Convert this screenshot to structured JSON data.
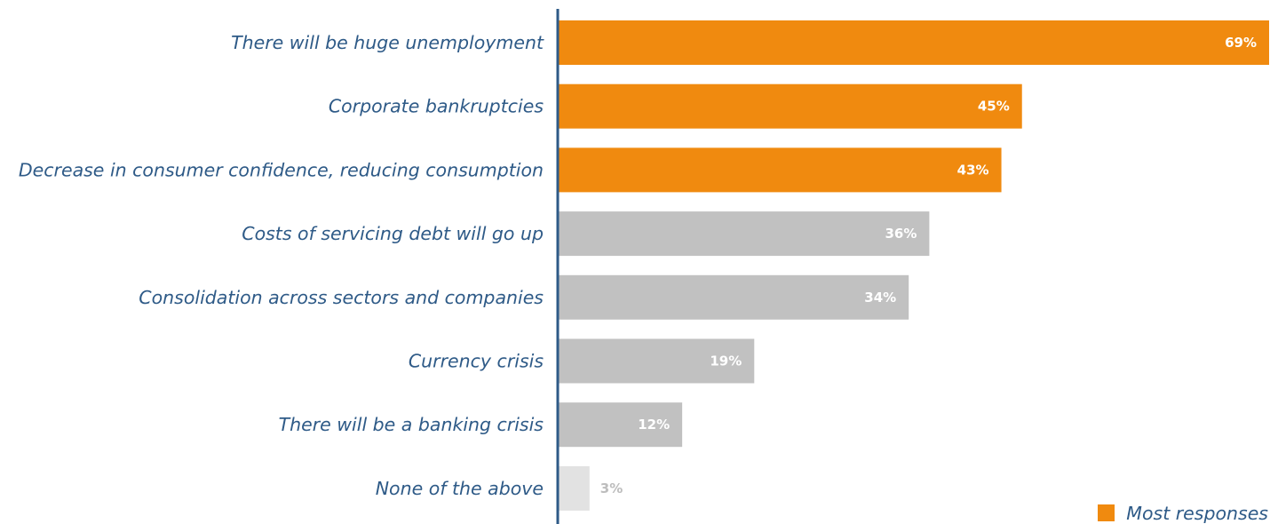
{
  "chart_data": {
    "type": "bar",
    "orientation": "horizontal",
    "categories": [
      "There will be huge unemployment",
      "Corporate bankruptcies",
      "Decrease in consumer confidence, reducing consumption",
      "Costs of servicing debt will go up",
      "Consolidation across sectors and companies",
      "Currency crisis",
      "There will be a banking crisis",
      "None of the above"
    ],
    "values": [
      69,
      45,
      43,
      36,
      34,
      19,
      12,
      3
    ],
    "value_labels": [
      "69%",
      "45%",
      "43%",
      "36%",
      "34%",
      "19%",
      "12%",
      "3%"
    ],
    "highlight": [
      true,
      true,
      true,
      false,
      false,
      false,
      false,
      false
    ],
    "xlim": [
      0,
      69
    ],
    "grid": false,
    "legend": {
      "label": "Most responses",
      "position": "bottom-right"
    },
    "colors": {
      "highlight": "#f08a0f",
      "normal": "#c1c1c1",
      "muted": "#e2e2e2",
      "label_text": "#2e5a87",
      "axis": "#2e5a87",
      "value_text_on_bar": "#ffffff",
      "value_text_outside": "#bdbdbd"
    }
  }
}
